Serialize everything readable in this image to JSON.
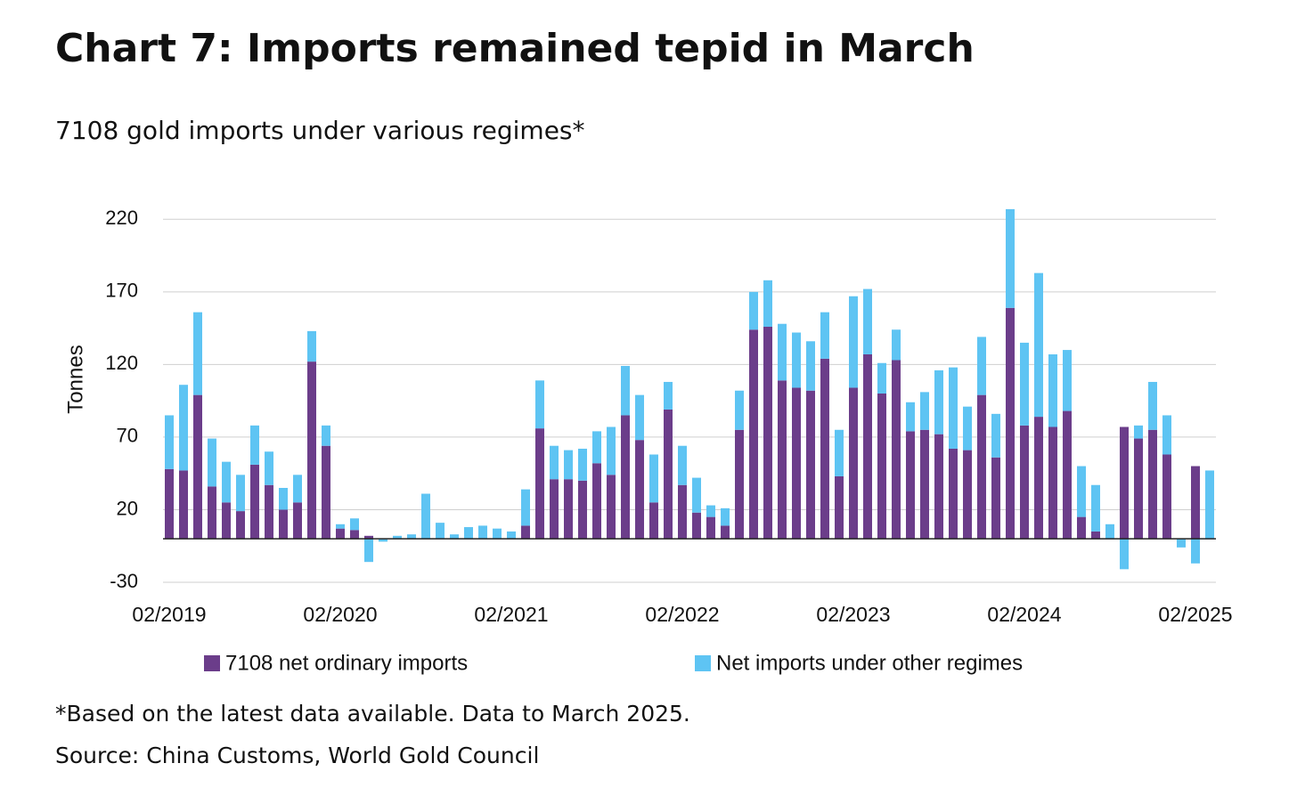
{
  "chart_data": {
    "type": "stacked_bar",
    "title": "Chart 7: Imports remained tepid in March",
    "subtitle": "7108 gold imports under various regimes*",
    "y_label": "Tonnes",
    "notes": [
      "*Based on the latest data available. Data to March 2025.",
      "Source: China Customs, World Gold Council"
    ],
    "categories": [
      "02/2019",
      null,
      null,
      null,
      null,
      null,
      null,
      null,
      null,
      null,
      null,
      null,
      "02/2020",
      null,
      null,
      null,
      null,
      null,
      null,
      null,
      null,
      null,
      null,
      null,
      "02/2021",
      null,
      null,
      null,
      null,
      null,
      null,
      null,
      null,
      null,
      null,
      null,
      "02/2022",
      null,
      null,
      null,
      null,
      null,
      null,
      null,
      null,
      null,
      null,
      null,
      "02/2023",
      null,
      null,
      null,
      null,
      null,
      null,
      null,
      null,
      null,
      null,
      null,
      "02/2024",
      null,
      null,
      null,
      null,
      null,
      null,
      null,
      null,
      null,
      null,
      null,
      "02/2025",
      null
    ],
    "series": [
      {
        "name": "7108 net ordinary imports",
        "color": "#6b3d8a",
        "values": [
          48,
          47,
          99,
          36,
          25,
          19,
          51,
          37,
          20,
          25,
          122,
          64,
          7,
          6,
          2,
          0,
          0,
          0,
          0,
          0,
          0,
          0,
          0,
          0,
          0,
          9,
          76,
          41,
          41,
          40,
          52,
          44,
          85,
          68,
          25,
          89,
          37,
          18,
          15,
          9,
          75,
          144,
          146,
          109,
          104,
          102,
          124,
          43,
          104,
          127,
          100,
          123,
          74,
          75,
          72,
          62,
          61,
          99,
          56,
          159,
          78,
          84,
          77,
          88,
          15,
          5,
          0,
          77,
          69,
          75,
          58,
          0,
          50,
          0
        ]
      },
      {
        "name": "Net imports under other regimes",
        "color": "#5ec4f3",
        "values": [
          37,
          59,
          57,
          33,
          28,
          25,
          27,
          23,
          15,
          19,
          21,
          14,
          3,
          8,
          -16,
          -2,
          2,
          3,
          31,
          11,
          3,
          8,
          9,
          7,
          5,
          25,
          33,
          23,
          20,
          22,
          22,
          33,
          34,
          31,
          33,
          19,
          27,
          24,
          8,
          12,
          27,
          26,
          32,
          39,
          38,
          34,
          32,
          32,
          63,
          45,
          21,
          21,
          20,
          26,
          44,
          56,
          30,
          40,
          30,
          68,
          57,
          99,
          50,
          42,
          35,
          32,
          10,
          -21,
          9,
          33,
          27,
          -6,
          -17,
          47
        ]
      }
    ],
    "ylim": [
      -30,
      230
    ],
    "yticks": [
      -30,
      20,
      70,
      120,
      170,
      220
    ],
    "grid": true
  }
}
